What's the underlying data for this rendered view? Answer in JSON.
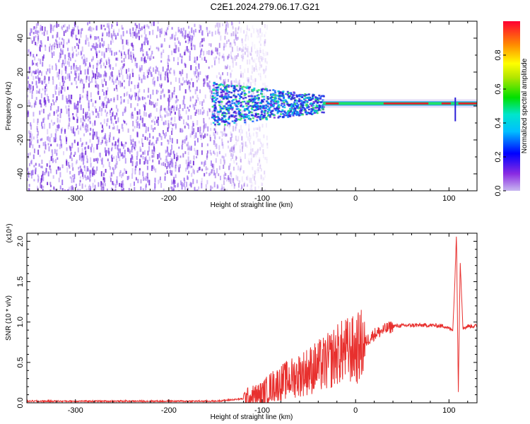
{
  "title": "C2E1.2024.279.06.17.G21",
  "colors": {
    "snr_line": "#e8302e",
    "spectro_base": "#7b2ee0",
    "background": "#ffffff"
  },
  "chart_data": [
    {
      "type": "heatmap",
      "title": "C2E1.2024.279.06.17.G21",
      "xlabel": "Height of straight line (km)",
      "ylabel": "Frequency (Hz)",
      "xlim": [
        -352,
        130
      ],
      "ylim": [
        -50,
        50
      ],
      "xticks": [
        -300,
        -200,
        -100,
        0,
        100
      ],
      "yticks": [
        -40,
        -20,
        0,
        20,
        40
      ],
      "colorbar": {
        "label": "Normalized spectral amplitude",
        "range": [
          0,
          1
        ],
        "ticks": [
          "0.0",
          "0.2",
          "0.4",
          "0.6",
          "0.8"
        ],
        "colormap": "rainbow (purple to red)"
      },
      "features": {
        "noise_region_km": [
          -352,
          -115
        ],
        "signal_start_km": -155,
        "signal_center_hz": 1.5,
        "strong_tone_start_km": -35
      }
    },
    {
      "type": "line",
      "xlabel": "Height of straight line (km)",
      "ylabel": "SNR (10 * v/v)",
      "y_multiplier": "(x10⁴)",
      "xlim": [
        -352,
        130
      ],
      "ylim": [
        0,
        2.1
      ],
      "xticks": [
        -300,
        -200,
        -100,
        0,
        100
      ],
      "yticks": [
        0.0,
        0.5,
        1.0,
        1.5,
        2.0
      ],
      "series": [
        {
          "x": [
            -352,
            -300,
            -250,
            -200,
            -150,
            -120,
            -100,
            -90,
            -80,
            -70,
            -60,
            -50,
            -40,
            -30,
            -20,
            -10,
            0,
            10,
            20,
            30,
            40,
            60,
            80,
            95,
            100,
            104,
            106,
            108,
            110,
            112,
            115,
            120,
            130
          ],
          "y": [
            0.02,
            0.02,
            0.02,
            0.02,
            0.02,
            0.05,
            0.1,
            0.2,
            0.25,
            0.3,
            0.35,
            0.4,
            0.45,
            0.5,
            0.6,
            0.65,
            0.65,
            0.75,
            0.85,
            0.9,
            0.95,
            0.96,
            0.96,
            0.95,
            0.92,
            0.9,
            1.4,
            2.1,
            0.15,
            1.75,
            0.92,
            0.95,
            0.95
          ]
        }
      ]
    }
  ],
  "panels": {
    "top": {
      "xlabel": "Height of straight line (km)",
      "ylabel": "Frequency (Hz)",
      "xtick_labels": [
        "-300",
        "-200",
        "-100",
        "0",
        "100"
      ],
      "ytick_labels": [
        "-40",
        "-20",
        "0",
        "20",
        "40"
      ],
      "cbar_label": "Normalized spectral amplitude",
      "cbar_tick_labels": [
        "0.0",
        "0.2",
        "0.4",
        "0.6",
        "0.8"
      ]
    },
    "bottom": {
      "xlabel": "Height of straight line (km)",
      "ylabel": "SNR (10 * v/v)",
      "multiplier": "(x10⁴)",
      "xtick_labels": [
        "-300",
        "-200",
        "-100",
        "0",
        "100"
      ],
      "ytick_labels": [
        "0.0",
        "0.5",
        "1.0",
        "1.5",
        "2.0"
      ]
    }
  }
}
